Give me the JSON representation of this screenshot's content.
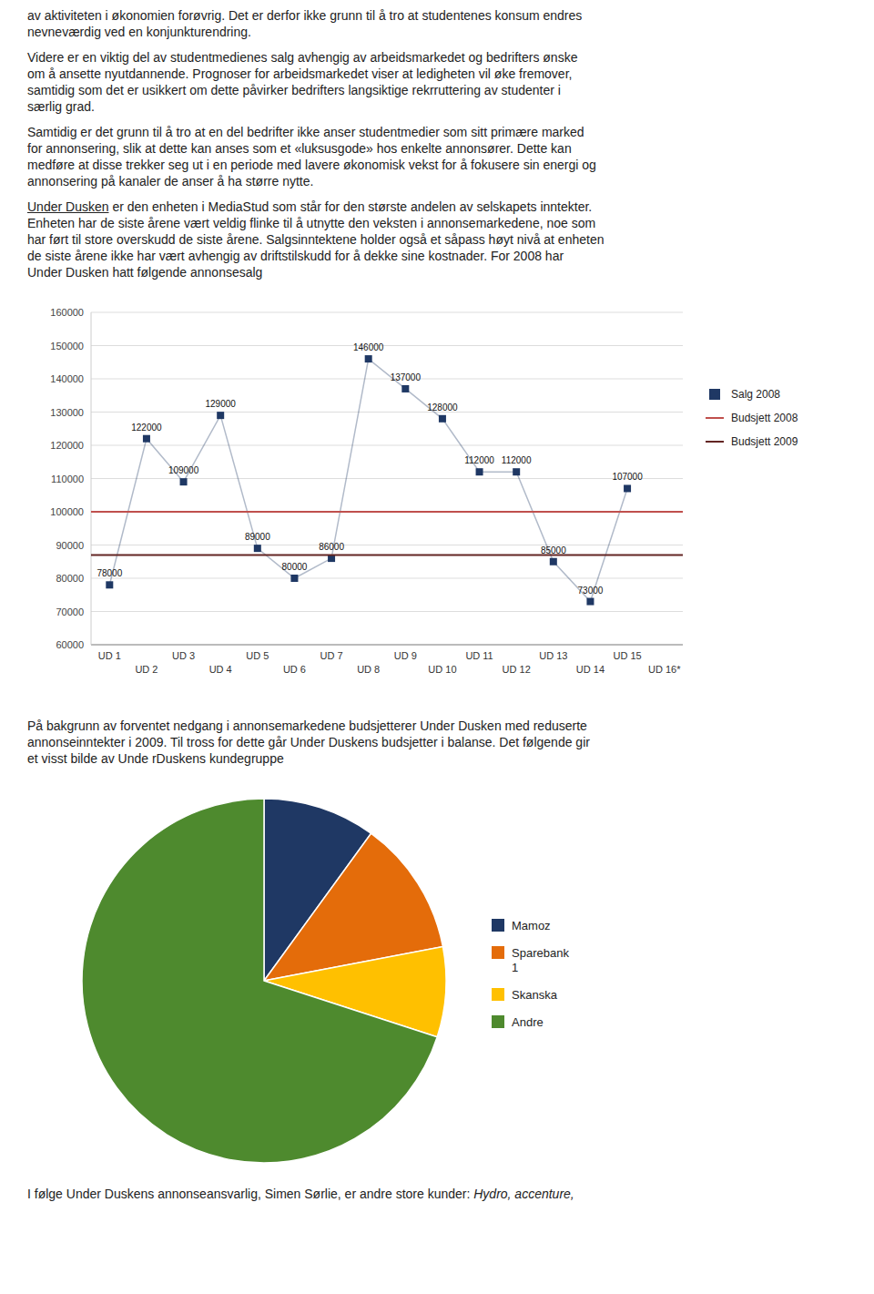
{
  "paragraphs": [
    [
      {
        "text": "av aktiviteten i økonomien forøvrig. Det er derfor ikke grunn til å tro at studentenes konsum endres\nnevneværdig ved en konjunkturendring."
      }
    ],
    [
      {
        "text": "Videre er en viktig del av studentmedienes salg avhengig av arbeidsmarkedet og bedrifters ønske\nom å ansette nyutdannende. Prognoser for arbeidsmarkedet viser at ledigheten vil øke fremover,\nsamtidig som det er usikkert om dette påvirker bedrifters langsiktige rekrruttering av studenter i\nsærlig grad."
      }
    ],
    [
      {
        "text": "Samtidig er det grunn til å tro at en del bedrifter ikke anser studentmedier som sitt primære marked\nfor annonsering, slik at dette kan anses som et «luksusgode» hos enkelte annonsører. Dette kan\nmedføre at disse trekker seg ut i en periode med lavere økonomisk vekst for å fokusere sin energi og\nannonsering på kanaler de anser å ha større nytte."
      }
    ],
    [
      {
        "text": "Under Dusken",
        "style": "underline"
      },
      {
        "text": " er den enheten i MediaStud som står for den største andelen av selskapets inntekter.\nEnheten har de siste årene vært veldig flinke til å utnytte den veksten i annonsemarkedene, noe som\nhar ført til store overskudd de siste årene. Salgsinntektene holder også et såpass høyt nivå at enheten\nde siste årene ikke har vært avhengig av driftstilskudd for å dekke sine kostnader. For 2008 har\nUnder Dusken hatt følgende annonsesalg"
      }
    ],
    [
      {
        "text": "På bakgrunn av forventet nedgang i annonsemarkedene budsjetterer Under Dusken med reduserte\nannonseinntekter i 2009. Til tross for dette går Under Duskens budsjetter i balanse. Det følgende gir\net visst bilde av Unde rDuskens kundegruppe"
      }
    ],
    [
      {
        "text": "I følge Under Duskens annonseansvarlig, Simen Sørlie, er andre store kunder: "
      },
      {
        "text": "Hydro, accenture,",
        "style": "italic"
      }
    ]
  ],
  "chart_data": [
    {
      "type": "line",
      "categories": [
        "UD 1",
        "UD 2",
        "UD 3",
        "UD 4",
        "UD 5",
        "UD 6",
        "UD 7",
        "UD 8",
        "UD 9",
        "UD 10",
        "UD 11",
        "UD 12",
        "UD 13",
        "UD 14",
        "UD 15",
        "UD 16*"
      ],
      "series": [
        {
          "name": "Salg 2008",
          "color": "#1f3864",
          "marker": "square",
          "values": [
            78000,
            122000,
            109000,
            129000,
            89000,
            80000,
            86000,
            146000,
            137000,
            128000,
            112000,
            112000,
            85000,
            73000,
            107000,
            null
          ]
        },
        {
          "name": "Budsjett 2008",
          "type": "hline",
          "color": "#c0504d",
          "value": 100000
        },
        {
          "name": "Budsjett 2009",
          "type": "hline",
          "color": "#632523",
          "value": 87000
        }
      ],
      "ylim": [
        60000,
        160000
      ],
      "yticks": [
        60000,
        70000,
        80000,
        90000,
        100000,
        110000,
        120000,
        130000,
        140000,
        150000,
        160000
      ],
      "grid": true,
      "data_labels": true,
      "legend": "right"
    },
    {
      "type": "pie",
      "categories": [
        "Mamoz",
        "Sparebank\n1",
        "Skanska",
        "Andre"
      ],
      "values": [
        10,
        12,
        8,
        70
      ],
      "colors": [
        "#1f3864",
        "#e46c0a",
        "#ffc000",
        "#4e8a2e"
      ],
      "legend": "right"
    }
  ]
}
